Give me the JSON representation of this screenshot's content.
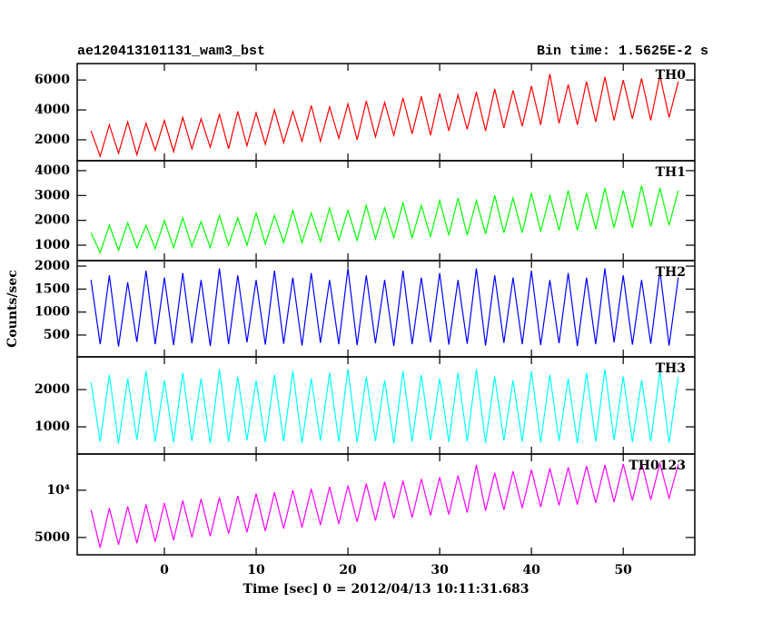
{
  "chart_data": {
    "type": "line",
    "title": "ae120413101131_wam3_bst",
    "subtitle": "Bin time: 1.5625E-2 s",
    "xlabel": "Time [sec] 0 = 2012/04/13 10:11:31.683",
    "ylabel": "Counts/sec",
    "xlim": [
      -9.5,
      57.8
    ],
    "xticks": [
      0,
      10,
      20,
      30,
      40,
      50
    ],
    "x": [
      -8,
      -7,
      -6,
      -5,
      -4,
      -3,
      -2,
      -1,
      0,
      1,
      2,
      3,
      4,
      5,
      6,
      7,
      8,
      9,
      10,
      11,
      12,
      13,
      14,
      15,
      16,
      17,
      18,
      19,
      20,
      21,
      22,
      23,
      24,
      25,
      26,
      27,
      28,
      29,
      30,
      31,
      32,
      33,
      34,
      35,
      36,
      37,
      38,
      39,
      40,
      41,
      42,
      43,
      44,
      45,
      46,
      47,
      48,
      49,
      50,
      51,
      52,
      53,
      54,
      55,
      56
    ],
    "panels": [
      {
        "name": "TH0",
        "color": "#ff0000",
        "ylim": [
          600,
          7100
        ],
        "yticks": [
          2000,
          4000,
          6000
        ],
        "values": [
          2600,
          900,
          3000,
          1100,
          3200,
          1000,
          3100,
          1300,
          3300,
          1200,
          3500,
          1400,
          3400,
          1500,
          3700,
          1400,
          3900,
          1600,
          3800,
          1700,
          4000,
          1800,
          3900,
          1900,
          4300,
          1900,
          4200,
          2100,
          4400,
          2000,
          4600,
          2200,
          4500,
          2300,
          4800,
          2400,
          4900,
          2300,
          5100,
          2600,
          5000,
          2700,
          5200,
          2600,
          5400,
          2800,
          5300,
          2900,
          5600,
          3000,
          6400,
          3100,
          5700,
          3000,
          5900,
          3200,
          6200,
          3300,
          6000,
          3400,
          6100,
          3300,
          6300,
          3500,
          5900
        ]
      },
      {
        "name": "TH1",
        "color": "#00ff00",
        "ylim": [
          380,
          4400
        ],
        "yticks": [
          1000,
          2000,
          3000,
          4000
        ],
        "values": [
          1500,
          700,
          1800,
          800,
          1900,
          900,
          1800,
          850,
          2000,
          900,
          2100,
          950,
          1950,
          900,
          2200,
          1000,
          2100,
          1000,
          2300,
          1050,
          2200,
          1100,
          2400,
          1100,
          2300,
          1150,
          2500,
          1200,
          2400,
          1200,
          2600,
          1250,
          2500,
          1300,
          2700,
          1300,
          2600,
          1350,
          2800,
          1400,
          2900,
          1400,
          2800,
          1450,
          3000,
          1500,
          2900,
          1500,
          3100,
          1550,
          3000,
          1600,
          3200,
          1600,
          3100,
          1650,
          3300,
          1700,
          3200,
          1700,
          3400,
          1750,
          3300,
          1800,
          3200
        ]
      },
      {
        "name": "TH2",
        "color": "#0000ff",
        "ylim": [
          25,
          2120
        ],
        "yticks": [
          500,
          1000,
          1500,
          2000
        ],
        "values": [
          1700,
          300,
          1800,
          250,
          1650,
          350,
          1900,
          300,
          1750,
          280,
          1850,
          320,
          1700,
          260,
          1950,
          300,
          1800,
          340,
          1700,
          290,
          1900,
          310,
          1750,
          270,
          1850,
          330,
          1700,
          300,
          1950,
          280,
          1800,
          320,
          1700,
          260,
          1900,
          300,
          1750,
          340,
          1850,
          290,
          1700,
          310,
          1950,
          270,
          1800,
          330,
          1750,
          300,
          1900,
          280,
          1700,
          320,
          1850,
          260,
          1750,
          300,
          1950,
          340,
          1800,
          290,
          1700,
          310,
          1900,
          270,
          1750
        ]
      },
      {
        "name": "TH3",
        "color": "#00ffff",
        "ylim": [
          270,
          2880
        ],
        "yticks": [
          1000,
          2000
        ],
        "values": [
          2200,
          600,
          2400,
          550,
          2300,
          650,
          2500,
          600,
          2250,
          580,
          2450,
          620,
          2300,
          560,
          2550,
          600,
          2350,
          640,
          2250,
          590,
          2400,
          610,
          2500,
          570,
          2300,
          630,
          2450,
          600,
          2550,
          580,
          2350,
          620,
          2250,
          560,
          2500,
          600,
          2400,
          640,
          2300,
          590,
          2450,
          610,
          2550,
          570,
          2350,
          630,
          2250,
          600,
          2500,
          580,
          2400,
          620,
          2300,
          560,
          2450,
          600,
          2550,
          640,
          2350,
          590,
          2250,
          610,
          2500,
          570,
          2350
        ]
      },
      {
        "name": "TH0123",
        "color": "#ff00ff",
        "ylim": [
          3880,
          17000
        ],
        "log": true,
        "yticks": [
          5000,
          {
            "value": 10000,
            "label": "10⁴"
          }
        ],
        "values": [
          7500,
          4300,
          7700,
          4500,
          7900,
          4600,
          8100,
          4700,
          8300,
          4800,
          8600,
          5000,
          8800,
          5100,
          9000,
          5300,
          9200,
          5400,
          9500,
          5500,
          9700,
          5700,
          10000,
          5800,
          10200,
          6000,
          10500,
          6100,
          10700,
          6300,
          11000,
          6400,
          11300,
          6600,
          11500,
          6700,
          11800,
          6900,
          12100,
          7000,
          12400,
          7200,
          14500,
          7400,
          12900,
          7500,
          13200,
          7700,
          13500,
          7800,
          13800,
          8000,
          14000,
          8100,
          14300,
          8300,
          14500,
          8400,
          14700,
          8600,
          15000,
          8700,
          14800,
          8900,
          14600
        ]
      }
    ]
  }
}
